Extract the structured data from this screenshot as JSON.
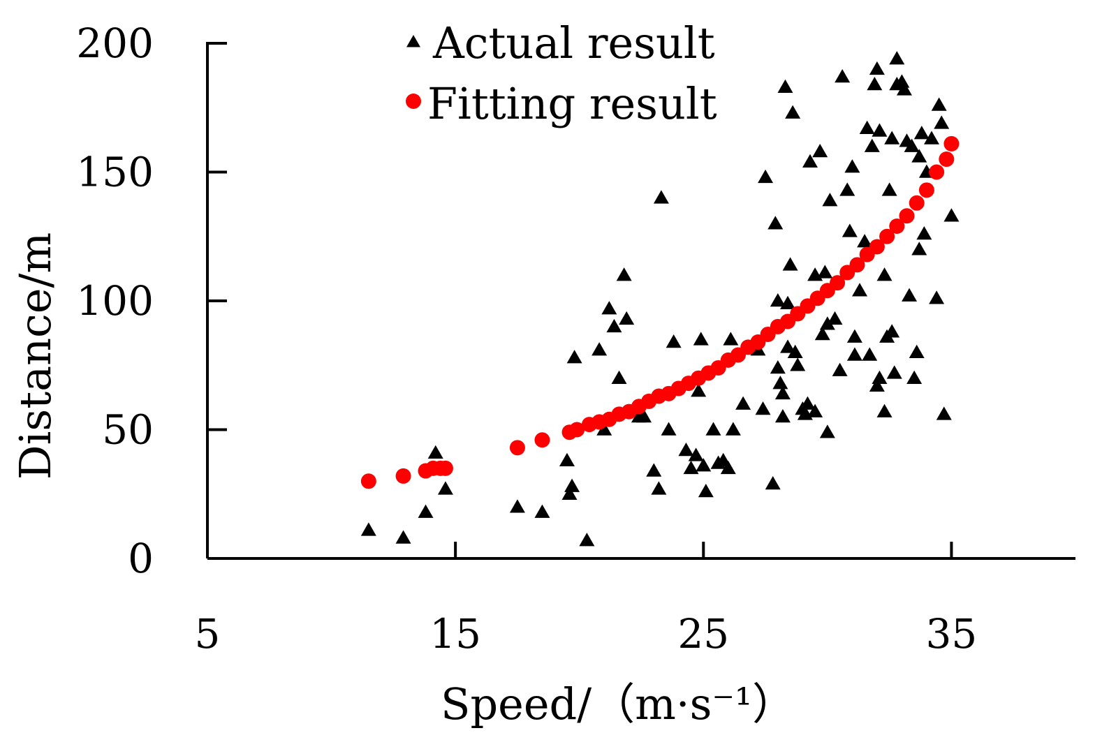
{
  "chart_data": {
    "type": "scatter",
    "title": "",
    "xlabel": "Speed/（m·s⁻¹）",
    "ylabel": "Distance/m",
    "xlim": [
      5,
      40
    ],
    "ylim": [
      0,
      200
    ],
    "x_ticks": [
      5,
      15,
      25,
      35
    ],
    "y_ticks": [
      0,
      50,
      100,
      150,
      200
    ],
    "grid": false,
    "legend_position": "top-center",
    "colors": {
      "actual": "#000000",
      "fitting": "#ff0000",
      "axis": "#000000"
    },
    "series": [
      {
        "name": "Actual result",
        "marker": "triangle",
        "points": [
          [
            11.5,
            11
          ],
          [
            12.9,
            8
          ],
          [
            13.8,
            18
          ],
          [
            14.2,
            41
          ],
          [
            14.6,
            27
          ],
          [
            17.5,
            20
          ],
          [
            18.5,
            18
          ],
          [
            19.5,
            38
          ],
          [
            19.6,
            25
          ],
          [
            19.7,
            28
          ],
          [
            19.8,
            78
          ],
          [
            20.3,
            7
          ],
          [
            20.8,
            81
          ],
          [
            21.0,
            50
          ],
          [
            21.2,
            97
          ],
          [
            21.4,
            90
          ],
          [
            21.6,
            70
          ],
          [
            21.8,
            110
          ],
          [
            21.9,
            93
          ],
          [
            22.4,
            55
          ],
          [
            22.6,
            55
          ],
          [
            23.0,
            34
          ],
          [
            23.2,
            27
          ],
          [
            23.3,
            140
          ],
          [
            23.6,
            50
          ],
          [
            23.8,
            84
          ],
          [
            24.3,
            42
          ],
          [
            24.5,
            35
          ],
          [
            24.7,
            40
          ],
          [
            24.8,
            65
          ],
          [
            24.9,
            85
          ],
          [
            25.0,
            36
          ],
          [
            25.1,
            26
          ],
          [
            25.4,
            50
          ],
          [
            25.6,
            37
          ],
          [
            25.8,
            38
          ],
          [
            26.0,
            35
          ],
          [
            26.1,
            85
          ],
          [
            26.2,
            50
          ],
          [
            26.6,
            60
          ],
          [
            27.2,
            81
          ],
          [
            27.4,
            58
          ],
          [
            27.5,
            148
          ],
          [
            27.8,
            29
          ],
          [
            27.9,
            130
          ],
          [
            28.0,
            100
          ],
          [
            28.0,
            74
          ],
          [
            28.1,
            68
          ],
          [
            28.2,
            64
          ],
          [
            28.2,
            55
          ],
          [
            28.3,
            183
          ],
          [
            28.4,
            99
          ],
          [
            28.4,
            82
          ],
          [
            28.5,
            114
          ],
          [
            28.6,
            173
          ],
          [
            28.7,
            80
          ],
          [
            28.8,
            75
          ],
          [
            29.0,
            58
          ],
          [
            29.1,
            56
          ],
          [
            29.2,
            60
          ],
          [
            29.3,
            154
          ],
          [
            29.5,
            57
          ],
          [
            29.5,
            110
          ],
          [
            29.7,
            158
          ],
          [
            29.8,
            87
          ],
          [
            29.9,
            111
          ],
          [
            30.0,
            91
          ],
          [
            30.0,
            49
          ],
          [
            30.1,
            139
          ],
          [
            30.3,
            93
          ],
          [
            30.5,
            73
          ],
          [
            30.6,
            187
          ],
          [
            30.8,
            143
          ],
          [
            30.9,
            127
          ],
          [
            31.0,
            152
          ],
          [
            31.1,
            79
          ],
          [
            31.1,
            86
          ],
          [
            31.3,
            104
          ],
          [
            31.5,
            123
          ],
          [
            31.6,
            167
          ],
          [
            31.7,
            79
          ],
          [
            31.8,
            160
          ],
          [
            31.9,
            184
          ],
          [
            32.0,
            190
          ],
          [
            32.0,
            67
          ],
          [
            32.1,
            166
          ],
          [
            32.1,
            70
          ],
          [
            32.3,
            110
          ],
          [
            32.3,
            57
          ],
          [
            32.4,
            86
          ],
          [
            32.5,
            143
          ],
          [
            32.6,
            163
          ],
          [
            32.6,
            88
          ],
          [
            32.7,
            72
          ],
          [
            32.8,
            184
          ],
          [
            32.8,
            194
          ],
          [
            33.0,
            185
          ],
          [
            33.1,
            182
          ],
          [
            33.2,
            162
          ],
          [
            33.3,
            102
          ],
          [
            33.4,
            160
          ],
          [
            33.5,
            70
          ],
          [
            33.6,
            80
          ],
          [
            33.7,
            156
          ],
          [
            33.7,
            120
          ],
          [
            33.8,
            165
          ],
          [
            33.9,
            126
          ],
          [
            34.0,
            150
          ],
          [
            34.2,
            163
          ],
          [
            34.4,
            101
          ],
          [
            34.5,
            176
          ],
          [
            34.6,
            169
          ],
          [
            34.7,
            56
          ],
          [
            35.0,
            133
          ]
        ]
      },
      {
        "name": "Fitting result",
        "marker": "circle",
        "points": [
          [
            11.5,
            30
          ],
          [
            12.9,
            32
          ],
          [
            13.8,
            34
          ],
          [
            14.1,
            35
          ],
          [
            14.4,
            35
          ],
          [
            14.6,
            35
          ],
          [
            17.5,
            43
          ],
          [
            18.5,
            46
          ],
          [
            19.6,
            49
          ],
          [
            19.9,
            50
          ],
          [
            20.4,
            52
          ],
          [
            20.8,
            53
          ],
          [
            21.2,
            54
          ],
          [
            21.6,
            56
          ],
          [
            22.0,
            57
          ],
          [
            22.4,
            59
          ],
          [
            22.8,
            61
          ],
          [
            23.2,
            63
          ],
          [
            23.6,
            64
          ],
          [
            24.0,
            66
          ],
          [
            24.4,
            68
          ],
          [
            24.8,
            70
          ],
          [
            25.2,
            72
          ],
          [
            25.6,
            74
          ],
          [
            26.0,
            77
          ],
          [
            26.4,
            79
          ],
          [
            26.8,
            82
          ],
          [
            27.2,
            84
          ],
          [
            27.6,
            87
          ],
          [
            28.0,
            90
          ],
          [
            28.4,
            92
          ],
          [
            28.8,
            95
          ],
          [
            29.2,
            98
          ],
          [
            29.6,
            101
          ],
          [
            30.0,
            104
          ],
          [
            30.4,
            107
          ],
          [
            30.8,
            111
          ],
          [
            31.2,
            114
          ],
          [
            31.6,
            118
          ],
          [
            32.0,
            121
          ],
          [
            32.4,
            125
          ],
          [
            32.8,
            129
          ],
          [
            33.2,
            133
          ],
          [
            33.6,
            138
          ],
          [
            34.0,
            143
          ],
          [
            34.4,
            150
          ],
          [
            34.8,
            155
          ],
          [
            35.0,
            161
          ]
        ]
      }
    ]
  }
}
